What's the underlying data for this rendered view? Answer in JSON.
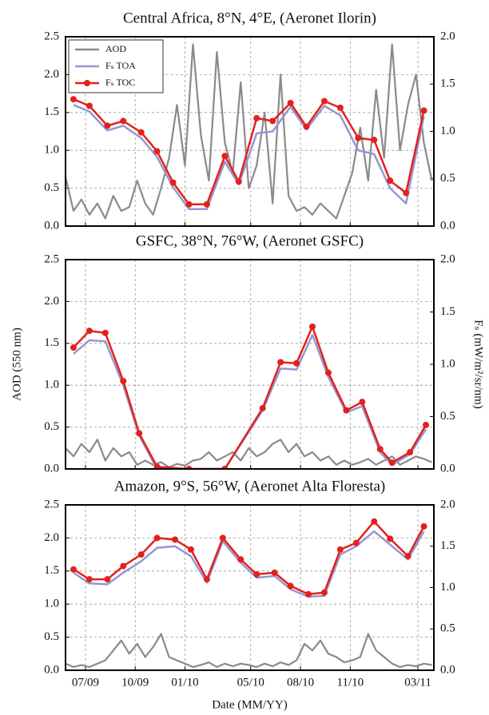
{
  "chart_data": [
    {
      "type": "line",
      "title": "Central Africa, 8°N, 4°E, (Aeronet Ilorin)",
      "xlim": [
        2009.4,
        2011.25
      ],
      "ylim": [
        0,
        2.5
      ],
      "y2lim": [
        0,
        2.0
      ],
      "grid": true,
      "legend": "upper left",
      "xticklabels": false,
      "xticks": [
        2009.5,
        2009.75,
        2010.0,
        2010.33,
        2010.58,
        2010.83,
        2011.17
      ],
      "yticks": [
        {
          "value": 0,
          "label": "0.0"
        },
        {
          "value": 0.5,
          "label": "0.5"
        },
        {
          "value": 1,
          "label": "1.0"
        },
        {
          "value": 1.5,
          "label": "1.5"
        },
        {
          "value": 2,
          "label": "2.0"
        },
        {
          "value": 2.5,
          "label": "2.5"
        }
      ],
      "y2ticks": [
        {
          "value": 0,
          "label": "0.0"
        },
        {
          "value": 0.5,
          "label": "0.5"
        },
        {
          "value": 1,
          "label": "1.0"
        },
        {
          "value": 1.5,
          "label": "1.5"
        },
        {
          "value": 2,
          "label": "2.0"
        }
      ],
      "series": [
        {
          "name": "AOD",
          "color": "#8a8a8a",
          "x": [
            2009.4,
            2009.44,
            2009.48,
            2009.52,
            2009.56,
            2009.6,
            2009.64,
            2009.68,
            2009.72,
            2009.76,
            2009.8,
            2009.84,
            2009.88,
            2009.92,
            2009.96,
            2010.0,
            2010.04,
            2010.08,
            2010.12,
            2010.16,
            2010.2,
            2010.24,
            2010.28,
            2010.32,
            2010.36,
            2010.4,
            2010.44,
            2010.48,
            2010.52,
            2010.56,
            2010.6,
            2010.64,
            2010.68,
            2010.72,
            2010.76,
            2010.8,
            2010.84,
            2010.88,
            2010.92,
            2010.96,
            2011.0,
            2011.04,
            2011.08,
            2011.12,
            2011.16,
            2011.2,
            2011.24
          ],
          "values": [
            0.65,
            0.2,
            0.35,
            0.15,
            0.3,
            0.1,
            0.4,
            0.2,
            0.25,
            0.6,
            0.3,
            0.15,
            0.5,
            0.9,
            1.6,
            0.8,
            2.4,
            1.2,
            0.6,
            2.3,
            1.1,
            0.7,
            1.9,
            0.5,
            0.8,
            1.5,
            0.3,
            2.0,
            0.4,
            0.2,
            0.25,
            0.15,
            0.3,
            0.2,
            0.1,
            0.4,
            0.7,
            1.3,
            0.6,
            1.8,
            0.9,
            2.4,
            1.0,
            1.6,
            2.0,
            1.1,
            0.6
          ]
        },
        {
          "name": "Fₛ TOA",
          "color": "#9497d0",
          "axis": "y2",
          "x": [
            2009.44,
            2009.52,
            2009.61,
            2009.69,
            2009.78,
            2009.86,
            2009.94,
            2010.02,
            2010.11,
            2010.2,
            2010.27,
            2010.36,
            2010.44,
            2010.53,
            2010.61,
            2010.7,
            2010.78,
            2010.87,
            2010.95,
            2011.03,
            2011.11,
            2011.2
          ],
          "values": [
            1.28,
            1.21,
            1.01,
            1.06,
            0.93,
            0.73,
            0.41,
            0.18,
            0.18,
            0.68,
            0.44,
            0.98,
            1.0,
            1.26,
            1.02,
            1.27,
            1.17,
            0.8,
            0.76,
            0.4,
            0.24,
            1.16
          ]
        },
        {
          "name": "Fₛ TOC",
          "color": "#e3211c",
          "axis": "y2",
          "marker": "o",
          "x": [
            2009.44,
            2009.52,
            2009.61,
            2009.69,
            2009.78,
            2009.86,
            2009.94,
            2010.02,
            2010.11,
            2010.2,
            2010.27,
            2010.36,
            2010.44,
            2010.53,
            2010.61,
            2010.7,
            2010.78,
            2010.87,
            2010.95,
            2011.03,
            2011.11,
            2011.2
          ],
          "values": [
            1.34,
            1.27,
            1.06,
            1.11,
            0.99,
            0.79,
            0.46,
            0.23,
            0.23,
            0.74,
            0.47,
            1.14,
            1.11,
            1.3,
            1.05,
            1.32,
            1.25,
            0.93,
            0.91,
            0.48,
            0.35,
            1.22
          ]
        }
      ]
    },
    {
      "type": "line",
      "title": "GSFC, 38°N, 76°W, (Aeronet GSFC)",
      "ylabel": "AOD (550 nm)",
      "y2label": "Fₛ (mW/m²/sr/nm)",
      "xlim": [
        2009.4,
        2011.25
      ],
      "ylim": [
        0,
        2.5
      ],
      "y2lim": [
        0,
        2.0
      ],
      "grid": true,
      "xticklabels": false,
      "xticks": [
        2009.5,
        2009.75,
        2010.0,
        2010.33,
        2010.58,
        2010.83,
        2011.17
      ],
      "yticks": [
        {
          "value": 0,
          "label": "0.0"
        },
        {
          "value": 0.5,
          "label": "0.5"
        },
        {
          "value": 1,
          "label": "1.0"
        },
        {
          "value": 1.5,
          "label": "1.5"
        },
        {
          "value": 2,
          "label": "2.0"
        },
        {
          "value": 2.5,
          "label": "2.5"
        }
      ],
      "y2ticks": [
        {
          "value": 0,
          "label": "0.0"
        },
        {
          "value": 0.5,
          "label": "0.5"
        },
        {
          "value": 1,
          "label": "1.0"
        },
        {
          "value": 1.5,
          "label": "1.5"
        },
        {
          "value": 2,
          "label": "2.0"
        }
      ],
      "series": [
        {
          "color": "#8a8a8a",
          "x": [
            2009.4,
            2009.44,
            2009.48,
            2009.52,
            2009.56,
            2009.6,
            2009.64,
            2009.68,
            2009.72,
            2009.76,
            2009.8,
            2009.84,
            2009.88,
            2009.92,
            2009.96,
            2010.0,
            2010.04,
            2010.08,
            2010.12,
            2010.16,
            2010.2,
            2010.24,
            2010.28,
            2010.32,
            2010.36,
            2010.4,
            2010.44,
            2010.48,
            2010.52,
            2010.56,
            2010.6,
            2010.64,
            2010.68,
            2010.72,
            2010.76,
            2010.8,
            2010.84,
            2010.88,
            2010.92,
            2010.96,
            2011.0,
            2011.04,
            2011.08,
            2011.12,
            2011.16,
            2011.2,
            2011.24
          ],
          "values": [
            0.25,
            0.15,
            0.3,
            0.2,
            0.35,
            0.1,
            0.25,
            0.15,
            0.2,
            0.05,
            0.1,
            0.05,
            0.08,
            0.02,
            0.06,
            0.04,
            0.1,
            0.12,
            0.2,
            0.1,
            0.15,
            0.2,
            0.1,
            0.25,
            0.15,
            0.2,
            0.3,
            0.35,
            0.2,
            0.3,
            0.15,
            0.2,
            0.1,
            0.15,
            0.05,
            0.1,
            0.05,
            0.08,
            0.12,
            0.05,
            0.1,
            0.15,
            0.05,
            0.1,
            0.15,
            0.12,
            0.08
          ]
        },
        {
          "color": "#9497d0",
          "axis": "y2",
          "x": [
            2009.44,
            2009.52,
            2009.6,
            2009.69,
            2009.77,
            2009.86,
            2010.02,
            2010.2,
            2010.39,
            2010.48,
            2010.56,
            2010.64,
            2010.72,
            2010.81,
            2010.89,
            2010.98,
            2011.04,
            2011.13,
            2011.21
          ],
          "values": [
            1.1,
            1.23,
            1.22,
            0.8,
            0.32,
            0.0,
            0.0,
            0.0,
            0.56,
            0.96,
            0.95,
            1.28,
            0.88,
            0.54,
            0.6,
            0.16,
            0.04,
            0.14,
            0.38
          ]
        },
        {
          "color": "#e3211c",
          "axis": "y2",
          "marker": "o",
          "x": [
            2009.44,
            2009.52,
            2009.6,
            2009.69,
            2009.77,
            2009.86,
            2010.02,
            2010.2,
            2010.39,
            2010.48,
            2010.56,
            2010.64,
            2010.72,
            2010.81,
            2010.89,
            2010.98,
            2011.04,
            2011.13,
            2011.21
          ],
          "values": [
            1.16,
            1.32,
            1.3,
            0.84,
            0.34,
            0.02,
            0.0,
            0.0,
            0.58,
            1.02,
            1.01,
            1.36,
            0.92,
            0.56,
            0.64,
            0.19,
            0.06,
            0.16,
            0.42
          ]
        }
      ]
    },
    {
      "type": "line",
      "title": "Amazon, 9°S, 56°W, (Aeronet Alta Floresta)",
      "xlabel": "Date (MM/YY)",
      "xlim": [
        2009.4,
        2011.25
      ],
      "ylim": [
        0,
        2.5
      ],
      "y2lim": [
        0,
        2.0
      ],
      "grid": true,
      "xticklabels": true,
      "xticks": [
        {
          "value": 2009.5,
          "label": "07/09"
        },
        {
          "value": 2009.75,
          "label": "10/09"
        },
        {
          "value": 2010.0,
          "label": "01/10"
        },
        {
          "value": 2010.33,
          "label": "05/10"
        },
        {
          "value": 2010.58,
          "label": "08/10"
        },
        {
          "value": 2010.83,
          "label": "11/10"
        },
        {
          "value": 2011.17,
          "label": "03/11"
        }
      ],
      "yticks": [
        {
          "value": 0,
          "label": "0.0"
        },
        {
          "value": 0.5,
          "label": "0.5"
        },
        {
          "value": 1,
          "label": "1.0"
        },
        {
          "value": 1.5,
          "label": "1.5"
        },
        {
          "value": 2,
          "label": "2.0"
        },
        {
          "value": 2.5,
          "label": "2.5"
        }
      ],
      "y2ticks": [
        {
          "value": 0,
          "label": "0.0"
        },
        {
          "value": 0.5,
          "label": "0.5"
        },
        {
          "value": 1,
          "label": "1.0"
        },
        {
          "value": 1.5,
          "label": "1.5"
        },
        {
          "value": 2,
          "label": "2.0"
        }
      ],
      "series": [
        {
          "color": "#8a8a8a",
          "x": [
            2009.4,
            2009.44,
            2009.48,
            2009.52,
            2009.56,
            2009.6,
            2009.64,
            2009.68,
            2009.72,
            2009.76,
            2009.8,
            2009.84,
            2009.88,
            2009.92,
            2009.96,
            2010.0,
            2010.04,
            2010.08,
            2010.12,
            2010.16,
            2010.2,
            2010.24,
            2010.28,
            2010.32,
            2010.36,
            2010.4,
            2010.44,
            2010.48,
            2010.52,
            2010.56,
            2010.6,
            2010.64,
            2010.68,
            2010.72,
            2010.76,
            2010.8,
            2010.84,
            2010.88,
            2010.92,
            2010.96,
            2011.0,
            2011.04,
            2011.08,
            2011.12,
            2011.16,
            2011.2,
            2011.24
          ],
          "values": [
            0.1,
            0.05,
            0.08,
            0.05,
            0.1,
            0.15,
            0.3,
            0.45,
            0.25,
            0.4,
            0.2,
            0.35,
            0.55,
            0.2,
            0.15,
            0.1,
            0.05,
            0.08,
            0.12,
            0.05,
            0.1,
            0.06,
            0.1,
            0.08,
            0.05,
            0.1,
            0.06,
            0.12,
            0.08,
            0.15,
            0.4,
            0.3,
            0.45,
            0.25,
            0.2,
            0.12,
            0.15,
            0.2,
            0.55,
            0.3,
            0.2,
            0.1,
            0.05,
            0.08,
            0.06,
            0.1,
            0.08
          ]
        },
        {
          "color": "#9497d0",
          "axis": "y2",
          "x": [
            2009.44,
            2009.52,
            2009.61,
            2009.69,
            2009.78,
            2009.86,
            2009.95,
            2010.03,
            2010.11,
            2010.19,
            2010.28,
            2010.36,
            2010.45,
            2010.53,
            2010.62,
            2010.7,
            2010.78,
            2010.86,
            2010.95,
            2011.03,
            2011.12,
            2011.2
          ],
          "values": [
            1.18,
            1.05,
            1.04,
            1.18,
            1.32,
            1.48,
            1.5,
            1.38,
            1.06,
            1.56,
            1.3,
            1.12,
            1.14,
            0.98,
            0.89,
            0.9,
            1.4,
            1.5,
            1.68,
            1.52,
            1.34,
            1.68
          ]
        },
        {
          "color": "#e3211c",
          "axis": "y2",
          "marker": "o",
          "x": [
            2009.44,
            2009.52,
            2009.61,
            2009.69,
            2009.78,
            2009.86,
            2009.95,
            2010.03,
            2010.11,
            2010.19,
            2010.28,
            2010.36,
            2010.45,
            2010.53,
            2010.62,
            2010.7,
            2010.78,
            2010.86,
            2010.95,
            2011.03,
            2011.12,
            2011.2
          ],
          "values": [
            1.22,
            1.1,
            1.1,
            1.26,
            1.4,
            1.6,
            1.58,
            1.46,
            1.1,
            1.6,
            1.34,
            1.16,
            1.18,
            1.02,
            0.92,
            0.94,
            1.46,
            1.54,
            1.8,
            1.59,
            1.38,
            1.74
          ]
        }
      ]
    }
  ]
}
